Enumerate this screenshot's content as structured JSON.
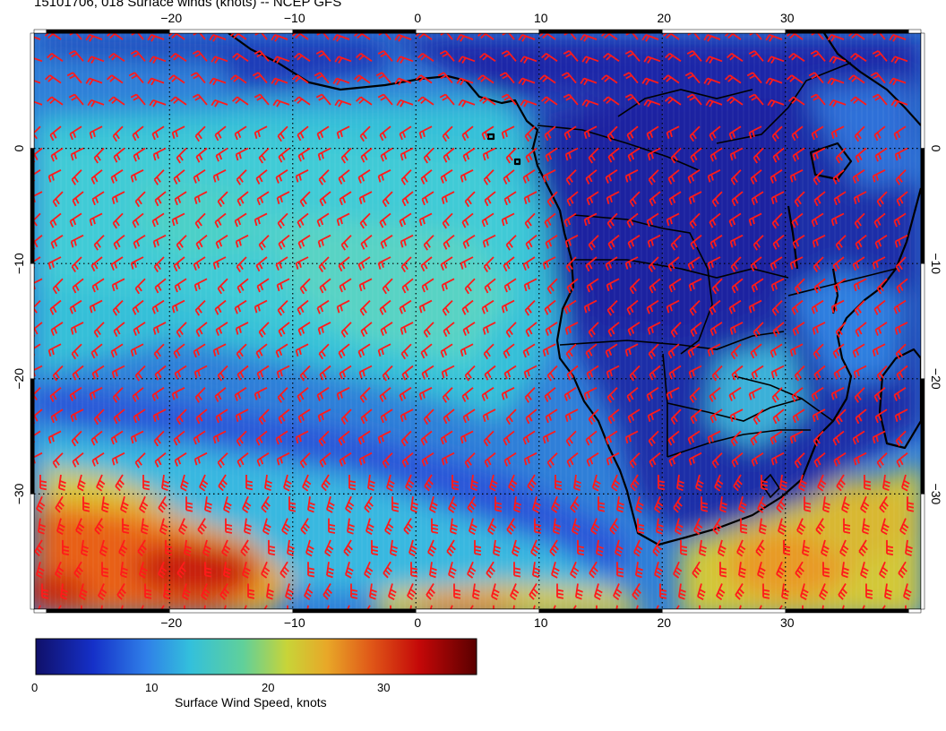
{
  "title": "15101706, 018 Surface winds (knots) -- NCEP GFS",
  "map": {
    "lon_ticks_top": [
      "-20",
      "-10",
      "0",
      "10",
      "20",
      "30"
    ],
    "lon_ticks_bottom": [
      "-20",
      "-10",
      "0",
      "10",
      "20",
      "30"
    ],
    "lat_ticks_left": [
      "0",
      "-10",
      "-20",
      "-30"
    ],
    "lat_ticks_right": [
      "0",
      "-10",
      "-20",
      "-30"
    ],
    "lon_values": [
      -20,
      -10,
      0,
      10,
      20,
      30
    ],
    "lat_values": [
      0,
      -10,
      -20,
      -30
    ],
    "lon_range": [
      -31,
      41
    ],
    "lat_range": [
      -40,
      10
    ],
    "barb_color": "#ff1a1a",
    "coast_color": "#000000",
    "grid": "dotted",
    "colorscale": [
      "#0a0a78",
      "#1f3adf",
      "#2f8ae8",
      "#38c6d8",
      "#7fd08a",
      "#d8d830",
      "#f0a020",
      "#e04010",
      "#b00000",
      "#600000"
    ]
  },
  "colorbar": {
    "title": "Surface Wind Speed, knots",
    "tick_labels": [
      "0",
      "10",
      "20",
      "30"
    ],
    "tick_values": [
      0,
      10,
      20,
      30
    ],
    "range": [
      0,
      38
    ]
  },
  "icons": {
    "wind_barb": "wind-barb-icon"
  }
}
